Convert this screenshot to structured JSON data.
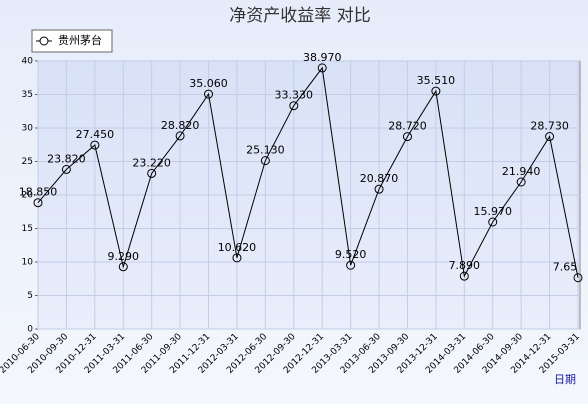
{
  "chart_data": {
    "type": "line",
    "title": "净资产收益率  对比",
    "x_label": "日期",
    "categories": [
      "2010-06-30",
      "2010-09-30",
      "2010-12-31",
      "2011-03-31",
      "2011-06-30",
      "2011-09-30",
      "2011-12-31",
      "2012-03-31",
      "2012-06-30",
      "2012-09-30",
      "2012-12-31",
      "2013-03-31",
      "2013-06-30",
      "2013-09-30",
      "2013-12-31",
      "2014-03-31",
      "2014-06-30",
      "2014-09-30",
      "2014-12-31",
      "2015-03-31"
    ],
    "series": [
      {
        "name": "贵州茅台",
        "color": "#000000",
        "values": [
          18.85,
          23.82,
          27.45,
          9.29,
          23.22,
          28.82,
          35.06,
          10.62,
          25.13,
          33.33,
          38.97,
          9.52,
          20.87,
          28.72,
          35.51,
          7.89,
          15.97,
          21.94,
          28.73,
          7.65
        ],
        "value_labels": [
          "18.850",
          "23.820",
          "27.450",
          "9.290",
          "23.220",
          "28.820",
          "35.060",
          "10.620",
          "25.130",
          "33.330",
          "38.970",
          "9.520",
          "20.870",
          "28.720",
          "35.510",
          "7.890",
          "15.970",
          "21.940",
          "28.730",
          "7.65"
        ]
      }
    ],
    "ylim": [
      0,
      40
    ],
    "yticks": [
      0,
      5,
      10,
      15,
      20,
      25,
      30,
      35,
      40
    ],
    "grid": true,
    "legend": "upper left"
  }
}
